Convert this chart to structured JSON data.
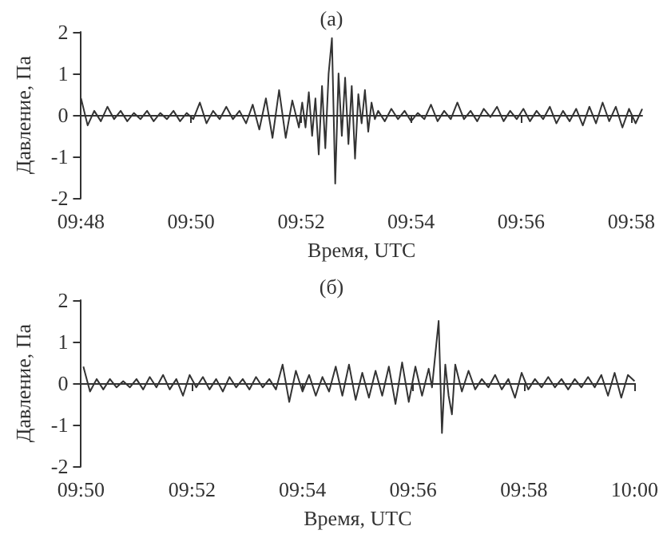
{
  "chart_data": [
    {
      "type": "line",
      "title": "(а)",
      "xlabel": "Время, UTC",
      "ylabel": "Давление, Па",
      "color": "#333333",
      "xlim": [
        9.8,
        9.97
      ],
      "ylim": [
        -2,
        2
      ],
      "xticks": [
        {
          "value": 9.8,
          "label": "09:48"
        },
        {
          "value": 9.8333,
          "label": "09:50"
        },
        {
          "value": 9.8667,
          "label": "09:52"
        },
        {
          "value": 9.9,
          "label": "09:54"
        },
        {
          "value": 9.9333,
          "label": "09:56"
        },
        {
          "value": 9.9667,
          "label": "09:58"
        }
      ],
      "yticks": [
        -2,
        -1,
        0,
        1,
        2
      ],
      "x": [
        9.8,
        9.802,
        9.804,
        9.806,
        9.808,
        9.81,
        9.812,
        9.814,
        9.816,
        9.818,
        9.82,
        9.822,
        9.824,
        9.826,
        9.828,
        9.83,
        9.832,
        9.834,
        9.836,
        9.838,
        9.84,
        9.842,
        9.844,
        9.846,
        9.848,
        9.85,
        9.852,
        9.854,
        9.856,
        9.858,
        9.86,
        9.862,
        9.864,
        9.866,
        9.867,
        9.868,
        9.869,
        9.87,
        9.871,
        9.872,
        9.873,
        9.874,
        9.875,
        9.876,
        9.877,
        9.878,
        9.879,
        9.88,
        9.881,
        9.882,
        9.883,
        9.884,
        9.885,
        9.886,
        9.887,
        9.888,
        9.889,
        9.89,
        9.892,
        9.894,
        9.896,
        9.898,
        9.9,
        9.902,
        9.904,
        9.906,
        9.908,
        9.91,
        9.912,
        9.914,
        9.916,
        9.918,
        9.92,
        9.922,
        9.924,
        9.926,
        9.928,
        9.93,
        9.932,
        9.934,
        9.936,
        9.938,
        9.94,
        9.942,
        9.944,
        9.946,
        9.948,
        9.95,
        9.952,
        9.954,
        9.956,
        9.958,
        9.96,
        9.962,
        9.964,
        9.966,
        9.968,
        9.97
      ],
      "values": [
        0.4,
        -0.25,
        0.1,
        -0.15,
        0.2,
        -0.1,
        0.1,
        -0.15,
        0.05,
        -0.1,
        0.1,
        -0.15,
        0.05,
        -0.1,
        0.1,
        -0.15,
        0.05,
        -0.1,
        0.3,
        -0.2,
        0.1,
        -0.1,
        0.2,
        -0.1,
        0.1,
        -0.2,
        0.25,
        -0.35,
        0.4,
        -0.55,
        0.6,
        -0.55,
        0.35,
        -0.3,
        0.3,
        -0.3,
        0.55,
        -0.5,
        0.4,
        -0.95,
        0.7,
        -0.8,
        1.0,
        1.85,
        -1.65,
        1.0,
        -0.5,
        0.9,
        -0.7,
        0.7,
        -1.05,
        0.5,
        -0.2,
        0.6,
        -0.4,
        0.3,
        -0.1,
        0.1,
        -0.15,
        0.15,
        -0.1,
        0.1,
        -0.15,
        0.05,
        -0.1,
        0.25,
        -0.15,
        0.1,
        -0.1,
        0.3,
        -0.1,
        0.1,
        -0.15,
        0.15,
        -0.05,
        0.2,
        -0.15,
        0.1,
        -0.1,
        0.15,
        -0.15,
        0.1,
        -0.1,
        0.2,
        -0.2,
        0.1,
        -0.15,
        0.15,
        -0.25,
        0.2,
        -0.2,
        0.3,
        -0.15,
        0.2,
        -0.3,
        0.15,
        -0.2,
        0.15
      ]
    },
    {
      "type": "line",
      "title": "(б)",
      "xlabel": "Время, UTC",
      "ylabel": "Давление, Па",
      "color": "#333333",
      "xlim": [
        9.8333,
        10.0
      ],
      "ylim": [
        -2,
        2
      ],
      "xticks": [
        {
          "value": 9.8333,
          "label": "09:50"
        },
        {
          "value": 9.8667,
          "label": "09:52"
        },
        {
          "value": 9.9,
          "label": "09:54"
        },
        {
          "value": 9.9333,
          "label": "09:56"
        },
        {
          "value": 9.9667,
          "label": "09:58"
        },
        {
          "value": 10.0,
          "label": "10:00"
        }
      ],
      "yticks": [
        -2,
        -1,
        0,
        1,
        2
      ],
      "x": [
        9.834,
        9.836,
        9.838,
        9.84,
        9.842,
        9.844,
        9.846,
        9.848,
        9.85,
        9.852,
        9.854,
        9.856,
        9.858,
        9.86,
        9.862,
        9.864,
        9.866,
        9.868,
        9.87,
        9.872,
        9.874,
        9.876,
        9.878,
        9.88,
        9.882,
        9.884,
        9.886,
        9.888,
        9.89,
        9.892,
        9.894,
        9.896,
        9.898,
        9.9,
        9.902,
        9.904,
        9.906,
        9.908,
        9.91,
        9.912,
        9.914,
        9.916,
        9.918,
        9.92,
        9.922,
        9.924,
        9.926,
        9.928,
        9.93,
        9.932,
        9.934,
        9.936,
        9.938,
        9.939,
        9.94,
        9.941,
        9.942,
        9.943,
        9.944,
        9.945,
        9.946,
        9.948,
        9.95,
        9.952,
        9.954,
        9.956,
        9.958,
        9.96,
        9.962,
        9.964,
        9.966,
        9.968,
        9.97,
        9.972,
        9.974,
        9.976,
        9.978,
        9.98,
        9.982,
        9.984,
        9.986,
        9.988,
        9.99,
        9.992,
        9.994,
        9.996,
        9.998,
        10.0
      ],
      "values": [
        0.4,
        -0.2,
        0.1,
        -0.15,
        0.1,
        -0.1,
        0.05,
        -0.1,
        0.1,
        -0.15,
        0.15,
        -0.1,
        0.2,
        -0.15,
        0.1,
        -0.3,
        0.2,
        -0.1,
        0.15,
        -0.15,
        0.1,
        -0.2,
        0.15,
        -0.1,
        0.1,
        -0.15,
        0.15,
        -0.1,
        0.1,
        -0.15,
        0.45,
        -0.45,
        0.3,
        -0.2,
        0.2,
        -0.3,
        0.15,
        -0.2,
        0.4,
        -0.3,
        0.45,
        -0.4,
        0.25,
        -0.35,
        0.3,
        -0.3,
        0.4,
        -0.5,
        0.5,
        -0.45,
        0.4,
        -0.3,
        0.35,
        -0.1,
        0.7,
        1.5,
        -1.2,
        0.45,
        -0.3,
        -0.75,
        0.45,
        -0.2,
        0.3,
        -0.15,
        0.1,
        -0.1,
        0.2,
        -0.15,
        0.1,
        -0.35,
        0.25,
        -0.15,
        0.1,
        -0.1,
        0.15,
        -0.1,
        0.1,
        -0.15,
        0.1,
        -0.1,
        0.15,
        -0.1,
        0.2,
        -0.3,
        0.25,
        -0.35,
        0.2,
        0.05
      ]
    }
  ]
}
